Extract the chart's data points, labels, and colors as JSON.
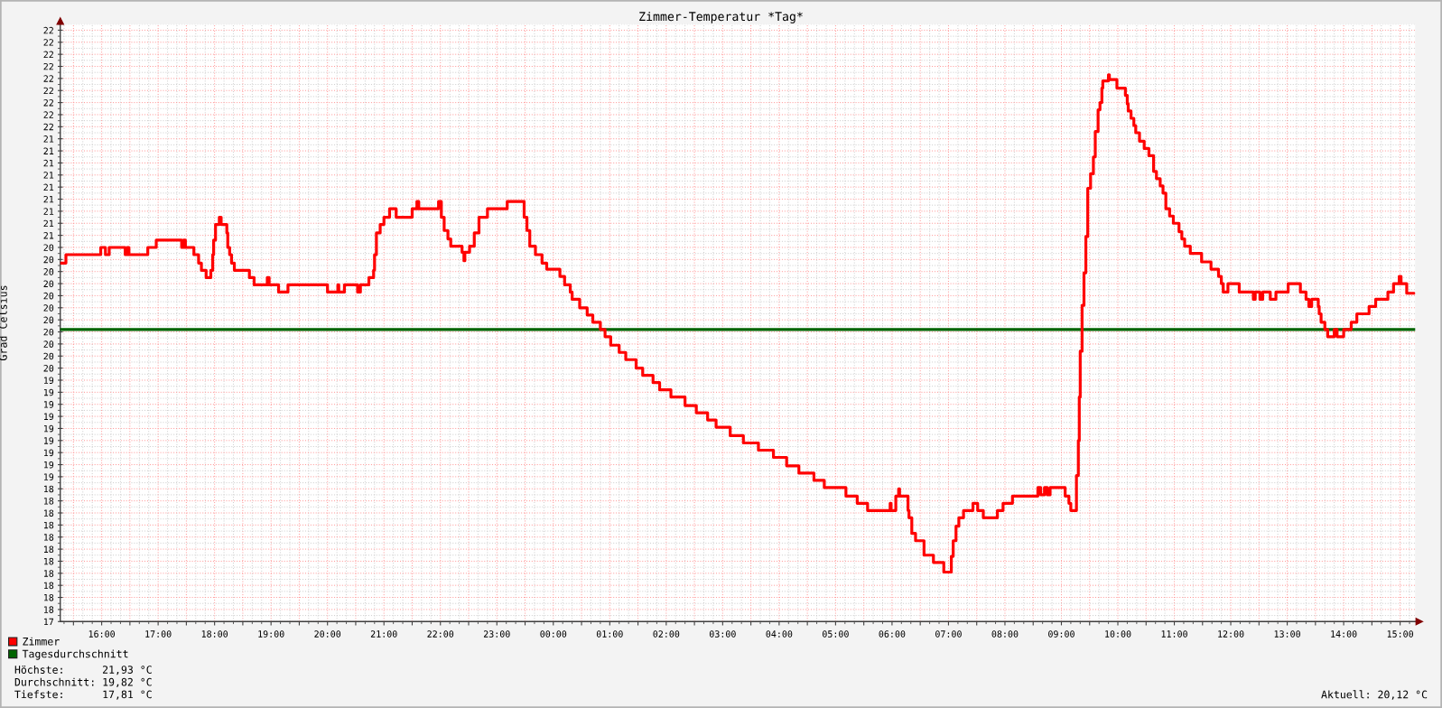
{
  "chart_data": {
    "type": "step",
    "title": "Zimmer-Temperatur *Tag*",
    "ylabel": "Grad Celsius",
    "x": [
      "2000-01-01T15:16",
      "2000-01-01T15:22",
      "2000-01-01T15:59",
      "2000-01-01T16:04",
      "2000-01-01T16:08",
      "2000-01-01T16:25",
      "2000-01-01T16:27",
      "2000-01-01T16:29",
      "2000-01-01T16:49",
      "2000-01-01T16:58",
      "2000-01-01T17:25",
      "2000-01-01T17:27",
      "2000-01-01T17:29",
      "2000-01-01T17:38",
      "2000-01-01T17:43",
      "2000-01-01T17:46",
      "2000-01-01T17:51",
      "2000-01-01T17:56",
      "2000-01-01T17:58",
      "2000-01-01T17:59",
      "2000-01-01T18:01",
      "2000-01-01T18:05",
      "2000-01-01T18:07",
      "2000-01-01T18:13",
      "2000-01-01T18:14",
      "2000-01-01T18:16",
      "2000-01-01T18:18",
      "2000-01-01T18:21",
      "2000-01-01T18:37",
      "2000-01-01T18:42",
      "2000-01-01T18:56",
      "2000-01-01T18:58",
      "2000-01-01T19:08",
      "2000-01-01T19:18",
      "2000-01-01T20:00",
      "2000-01-01T20:11",
      "2000-01-01T20:12",
      "2000-01-01T20:18",
      "2000-01-01T20:32",
      "2000-01-01T20:35",
      "2000-01-01T20:44",
      "2000-01-01T20:49",
      "2000-01-01T20:50",
      "2000-01-01T20:52",
      "2000-01-01T20:56",
      "2000-01-01T21:00",
      "2000-01-01T21:06",
      "2000-01-01T21:13",
      "2000-01-01T21:30",
      "2000-01-01T21:35",
      "2000-01-01T21:37",
      "2000-01-01T21:58",
      "2000-01-01T22:01",
      "2000-01-01T22:04",
      "2000-01-01T22:08",
      "2000-01-01T22:11",
      "2000-01-01T22:23",
      "2000-01-01T22:25",
      "2000-01-01T22:26",
      "2000-01-01T22:31",
      "2000-01-01T22:36",
      "2000-01-01T22:41",
      "2000-01-01T22:50",
      "2000-01-01T23:11",
      "2000-01-01T23:29",
      "2000-01-01T23:32",
      "2000-01-01T23:35",
      "2000-01-01T23:41",
      "2000-01-01T23:48",
      "2000-01-01T23:53",
      "2000-01-02T00:07",
      "2000-01-02T00:12",
      "2000-01-02T00:18",
      "2000-01-02T00:20",
      "2000-01-02T00:28",
      "2000-01-02T00:36",
      "2000-01-02T00:42",
      "2000-01-02T00:50",
      "2000-01-02T00:55",
      "2000-01-02T01:01",
      "2000-01-02T01:10",
      "2000-01-02T01:17",
      "2000-01-02T01:28",
      "2000-01-02T01:35",
      "2000-01-02T01:46",
      "2000-01-02T01:53",
      "2000-01-02T02:05",
      "2000-01-02T02:20",
      "2000-01-02T02:32",
      "2000-01-02T02:44",
      "2000-01-02T02:53",
      "2000-01-02T03:08",
      "2000-01-02T03:22",
      "2000-01-02T03:38",
      "2000-01-02T03:54",
      "2000-01-02T04:08",
      "2000-01-02T04:21",
      "2000-01-02T04:37",
      "2000-01-02T04:48",
      "2000-01-02T05:11",
      "2000-01-02T05:23",
      "2000-01-02T05:34",
      "2000-01-02T05:58",
      "2000-01-02T05:59",
      "2000-01-02T06:04",
      "2000-01-02T06:07",
      "2000-01-02T06:08",
      "2000-01-02T06:17",
      "2000-01-02T06:18",
      "2000-01-02T06:21",
      "2000-01-02T06:25",
      "2000-01-02T06:34",
      "2000-01-02T06:44",
      "2000-01-02T06:55",
      "2000-01-02T07:03",
      "2000-01-02T07:05",
      "2000-01-02T07:08",
      "2000-01-02T07:11",
      "2000-01-02T07:16",
      "2000-01-02T07:26",
      "2000-01-02T07:31",
      "2000-01-02T07:37",
      "2000-01-02T07:52",
      "2000-01-02T07:58",
      "2000-01-02T08:08",
      "2000-01-02T08:35",
      "2000-01-02T08:38",
      "2000-01-02T08:42",
      "2000-01-02T08:45",
      "2000-01-02T08:48",
      "2000-01-02T09:04",
      "2000-01-02T09:08",
      "2000-01-02T09:10",
      "2000-01-02T09:16",
      "2000-01-02T09:18",
      "2000-01-02T09:19",
      "2000-01-02T09:20",
      "2000-01-02T09:22",
      "2000-01-02T09:24",
      "2000-01-02T09:26",
      "2000-01-02T09:28",
      "2000-01-02T09:31",
      "2000-01-02T09:34",
      "2000-01-02T09:36",
      "2000-01-02T09:39",
      "2000-01-02T09:41",
      "2000-01-02T09:43",
      "2000-01-02T09:44",
      "2000-01-02T09:50",
      "2000-01-02T09:51",
      "2000-01-02T09:59",
      "2000-01-02T10:08",
      "2000-01-02T10:10",
      "2000-01-02T10:11",
      "2000-01-02T10:14",
      "2000-01-02T10:17",
      "2000-01-02T10:19",
      "2000-01-02T10:23",
      "2000-01-02T10:28",
      "2000-01-02T10:33",
      "2000-01-02T10:38",
      "2000-01-02T10:41",
      "2000-01-02T10:45",
      "2000-01-02T10:48",
      "2000-01-02T10:51",
      "2000-01-02T10:55",
      "2000-01-02T10:59",
      "2000-01-02T11:05",
      "2000-01-02T11:08",
      "2000-01-02T11:11",
      "2000-01-02T11:17",
      "2000-01-02T11:29",
      "2000-01-02T11:39",
      "2000-01-02T11:47",
      "2000-01-02T11:50",
      "2000-01-02T11:52",
      "2000-01-02T11:57",
      "2000-01-02T12:09",
      "2000-01-02T12:24",
      "2000-01-02T12:26",
      "2000-01-02T12:31",
      "2000-01-02T12:34",
      "2000-01-02T12:42",
      "2000-01-02T12:48",
      "2000-01-02T13:01",
      "2000-01-02T13:14",
      "2000-01-02T13:20",
      "2000-01-02T13:23",
      "2000-01-02T13:26",
      "2000-01-02T13:33",
      "2000-01-02T13:34",
      "2000-01-02T13:36",
      "2000-01-02T13:40",
      "2000-01-02T13:43",
      "2000-01-02T13:50",
      "2000-01-02T13:53",
      "2000-01-02T14:00",
      "2000-01-02T14:08",
      "2000-01-02T14:14",
      "2000-01-02T14:27",
      "2000-01-02T14:34",
      "2000-01-02T14:47",
      "2000-01-02T14:53",
      "2000-01-02T14:59",
      "2000-01-02T15:01",
      "2000-01-02T15:07",
      "2000-01-02T15:15"
    ],
    "series": [
      {
        "name": "Zimmer",
        "color": "#ff0000",
        "values": [
          20.37,
          20.44,
          20.5,
          20.44,
          20.5,
          20.44,
          20.5,
          20.44,
          20.5,
          20.56,
          20.5,
          20.56,
          20.5,
          20.44,
          20.37,
          20.31,
          20.25,
          20.31,
          20.44,
          20.56,
          20.69,
          20.75,
          20.69,
          20.62,
          20.5,
          20.44,
          20.37,
          20.31,
          20.25,
          20.19,
          20.25,
          20.19,
          20.13,
          20.19,
          20.13,
          20.19,
          20.13,
          20.19,
          20.13,
          20.19,
          20.25,
          20.31,
          20.44,
          20.62,
          20.69,
          20.75,
          20.82,
          20.75,
          20.82,
          20.88,
          20.82,
          20.88,
          20.75,
          20.64,
          20.57,
          20.51,
          20.46,
          20.39,
          20.46,
          20.51,
          20.62,
          20.75,
          20.82,
          20.88,
          20.75,
          20.64,
          20.51,
          20.44,
          20.37,
          20.32,
          20.26,
          20.19,
          20.13,
          20.07,
          20.0,
          19.94,
          19.88,
          19.82,
          19.76,
          19.69,
          19.63,
          19.57,
          19.5,
          19.44,
          19.38,
          19.32,
          19.26,
          19.19,
          19.13,
          19.07,
          19.01,
          18.94,
          18.88,
          18.82,
          18.76,
          18.69,
          18.63,
          18.57,
          18.51,
          18.44,
          18.38,
          18.32,
          18.38,
          18.32,
          18.44,
          18.5,
          18.44,
          18.32,
          18.26,
          18.13,
          18.07,
          17.95,
          17.89,
          17.81,
          17.94,
          18.07,
          18.19,
          18.26,
          18.32,
          18.38,
          18.32,
          18.26,
          18.32,
          18.38,
          18.44,
          18.51,
          18.45,
          18.51,
          18.45,
          18.51,
          18.44,
          18.38,
          18.32,
          18.61,
          18.9,
          19.26,
          19.64,
          20.02,
          20.29,
          20.59,
          20.99,
          21.11,
          21.25,
          21.46,
          21.64,
          21.7,
          21.82,
          21.88,
          21.93,
          21.89,
          21.82,
          21.76,
          21.69,
          21.63,
          21.57,
          21.51,
          21.45,
          21.38,
          21.32,
          21.26,
          21.13,
          21.07,
          21.01,
          20.95,
          20.82,
          20.76,
          20.7,
          20.63,
          20.57,
          20.51,
          20.45,
          20.38,
          20.32,
          20.26,
          20.2,
          20.13,
          20.2,
          20.13,
          20.07,
          20.13,
          20.07,
          20.13,
          20.07,
          20.13,
          20.2,
          20.13,
          20.07,
          20.01,
          20.07,
          20.01,
          19.95,
          19.88,
          19.82,
          19.76,
          19.82,
          19.76,
          19.82,
          19.88,
          19.95,
          20.01,
          20.07,
          20.13,
          20.2,
          20.26,
          20.2,
          20.12,
          20.12
        ]
      }
    ],
    "xlim": [
      "2000-01-01T15:16",
      "2000-01-02T15:16"
    ],
    "ylim": [
      17.4,
      22.35
    ],
    "xticks": [
      {
        "value": "2000-01-01T15:30",
        "label": null
      },
      {
        "value": "2000-01-01T16:00",
        "label": "16:00"
      },
      {
        "value": "2000-01-01T16:30",
        "label": null
      },
      {
        "value": "2000-01-01T17:00",
        "label": "17:00"
      },
      {
        "value": "2000-01-01T17:30",
        "label": null
      },
      {
        "value": "2000-01-01T18:00",
        "label": "18:00"
      },
      {
        "value": "2000-01-01T18:30",
        "label": null
      },
      {
        "value": "2000-01-01T19:00",
        "label": "19:00"
      },
      {
        "value": "2000-01-01T19:30",
        "label": null
      },
      {
        "value": "2000-01-01T20:00",
        "label": "20:00"
      },
      {
        "value": "2000-01-01T20:30",
        "label": null
      },
      {
        "value": "2000-01-01T21:00",
        "label": "21:00"
      },
      {
        "value": "2000-01-01T21:30",
        "label": null
      },
      {
        "value": "2000-01-01T22:00",
        "label": "22:00"
      },
      {
        "value": "2000-01-01T22:30",
        "label": null
      },
      {
        "value": "2000-01-01T23:00",
        "label": "23:00"
      },
      {
        "value": "2000-01-01T23:30",
        "label": null
      },
      {
        "value": "2000-01-02T00:00",
        "label": "00:00"
      },
      {
        "value": "2000-01-02T00:30",
        "label": null
      },
      {
        "value": "2000-01-02T01:00",
        "label": "01:00"
      },
      {
        "value": "2000-01-02T01:30",
        "label": null
      },
      {
        "value": "2000-01-02T02:00",
        "label": "02:00"
      },
      {
        "value": "2000-01-02T02:30",
        "label": null
      },
      {
        "value": "2000-01-02T03:00",
        "label": "03:00"
      },
      {
        "value": "2000-01-02T03:30",
        "label": null
      },
      {
        "value": "2000-01-02T04:00",
        "label": "04:00"
      },
      {
        "value": "2000-01-02T04:30",
        "label": null
      },
      {
        "value": "2000-01-02T05:00",
        "label": "05:00"
      },
      {
        "value": "2000-01-02T05:30",
        "label": null
      },
      {
        "value": "2000-01-02T06:00",
        "label": "06:00"
      },
      {
        "value": "2000-01-02T06:30",
        "label": null
      },
      {
        "value": "2000-01-02T07:00",
        "label": "07:00"
      },
      {
        "value": "2000-01-02T07:30",
        "label": null
      },
      {
        "value": "2000-01-02T08:00",
        "label": "08:00"
      },
      {
        "value": "2000-01-02T08:30",
        "label": null
      },
      {
        "value": "2000-01-02T09:00",
        "label": "09:00"
      },
      {
        "value": "2000-01-02T09:30",
        "label": null
      },
      {
        "value": "2000-01-02T10:00",
        "label": "10:00"
      },
      {
        "value": "2000-01-02T10:30",
        "label": null
      },
      {
        "value": "2000-01-02T11:00",
        "label": "11:00"
      },
      {
        "value": "2000-01-02T11:30",
        "label": null
      },
      {
        "value": "2000-01-02T12:00",
        "label": "12:00"
      },
      {
        "value": "2000-01-02T12:30",
        "label": null
      },
      {
        "value": "2000-01-02T13:00",
        "label": "13:00"
      },
      {
        "value": "2000-01-02T13:30",
        "label": null
      },
      {
        "value": "2000-01-02T14:00",
        "label": "14:00"
      },
      {
        "value": "2000-01-02T14:30",
        "label": null
      },
      {
        "value": "2000-01-02T15:00",
        "label": "15:00"
      }
    ],
    "yticks": [
      {
        "value": 17.4,
        "label": "17"
      },
      {
        "value": 17.5,
        "label": "18"
      },
      {
        "value": 17.6,
        "label": "18"
      },
      {
        "value": 17.7,
        "label": "18"
      },
      {
        "value": 17.8,
        "label": "18"
      },
      {
        "value": 17.9,
        "label": "18"
      },
      {
        "value": 18.0,
        "label": "18"
      },
      {
        "value": 18.1,
        "label": "18"
      },
      {
        "value": 18.2,
        "label": "18"
      },
      {
        "value": 18.3,
        "label": "18"
      },
      {
        "value": 18.4,
        "label": "18"
      },
      {
        "value": 18.5,
        "label": "18"
      },
      {
        "value": 18.6,
        "label": "19"
      },
      {
        "value": 18.7,
        "label": "19"
      },
      {
        "value": 18.8,
        "label": "19"
      },
      {
        "value": 18.9,
        "label": "19"
      },
      {
        "value": 19.0,
        "label": "19"
      },
      {
        "value": 19.1,
        "label": "19"
      },
      {
        "value": 19.2,
        "label": "19"
      },
      {
        "value": 19.3,
        "label": "19"
      },
      {
        "value": 19.4,
        "label": "19"
      },
      {
        "value": 19.5,
        "label": "20"
      },
      {
        "value": 19.6,
        "label": "20"
      },
      {
        "value": 19.7,
        "label": "20"
      },
      {
        "value": 19.8,
        "label": "20"
      },
      {
        "value": 19.9,
        "label": "20"
      },
      {
        "value": 20.0,
        "label": "20"
      },
      {
        "value": 20.1,
        "label": "20"
      },
      {
        "value": 20.2,
        "label": "20"
      },
      {
        "value": 20.3,
        "label": "20"
      },
      {
        "value": 20.4,
        "label": "20"
      },
      {
        "value": 20.5,
        "label": "20"
      },
      {
        "value": 20.6,
        "label": "21"
      },
      {
        "value": 20.7,
        "label": "21"
      },
      {
        "value": 20.8,
        "label": "21"
      },
      {
        "value": 20.9,
        "label": "21"
      },
      {
        "value": 21.0,
        "label": "21"
      },
      {
        "value": 21.1,
        "label": "21"
      },
      {
        "value": 21.2,
        "label": "21"
      },
      {
        "value": 21.3,
        "label": "21"
      },
      {
        "value": 21.4,
        "label": "21"
      },
      {
        "value": 21.5,
        "label": "22"
      },
      {
        "value": 21.6,
        "label": "22"
      },
      {
        "value": 21.7,
        "label": "22"
      },
      {
        "value": 21.8,
        "label": "22"
      },
      {
        "value": 21.9,
        "label": "22"
      },
      {
        "value": 22.0,
        "label": "22"
      },
      {
        "value": 22.1,
        "label": "22"
      },
      {
        "value": 22.2,
        "label": "22"
      },
      {
        "value": 22.3,
        "label": "22"
      }
    ],
    "grid": true,
    "legend": "bottom left",
    "ref_lines": [
      {
        "axis": "y",
        "value": 19.82,
        "label": "Tagesdurchschnitt",
        "color": "#006400"
      }
    ],
    "annotations": [
      "Höchste:      21,93 °C",
      "Durchschnitt: 19,82 °C",
      "Tiefste:      17,81 °C",
      "Aktuell: 20,12 °C"
    ]
  }
}
